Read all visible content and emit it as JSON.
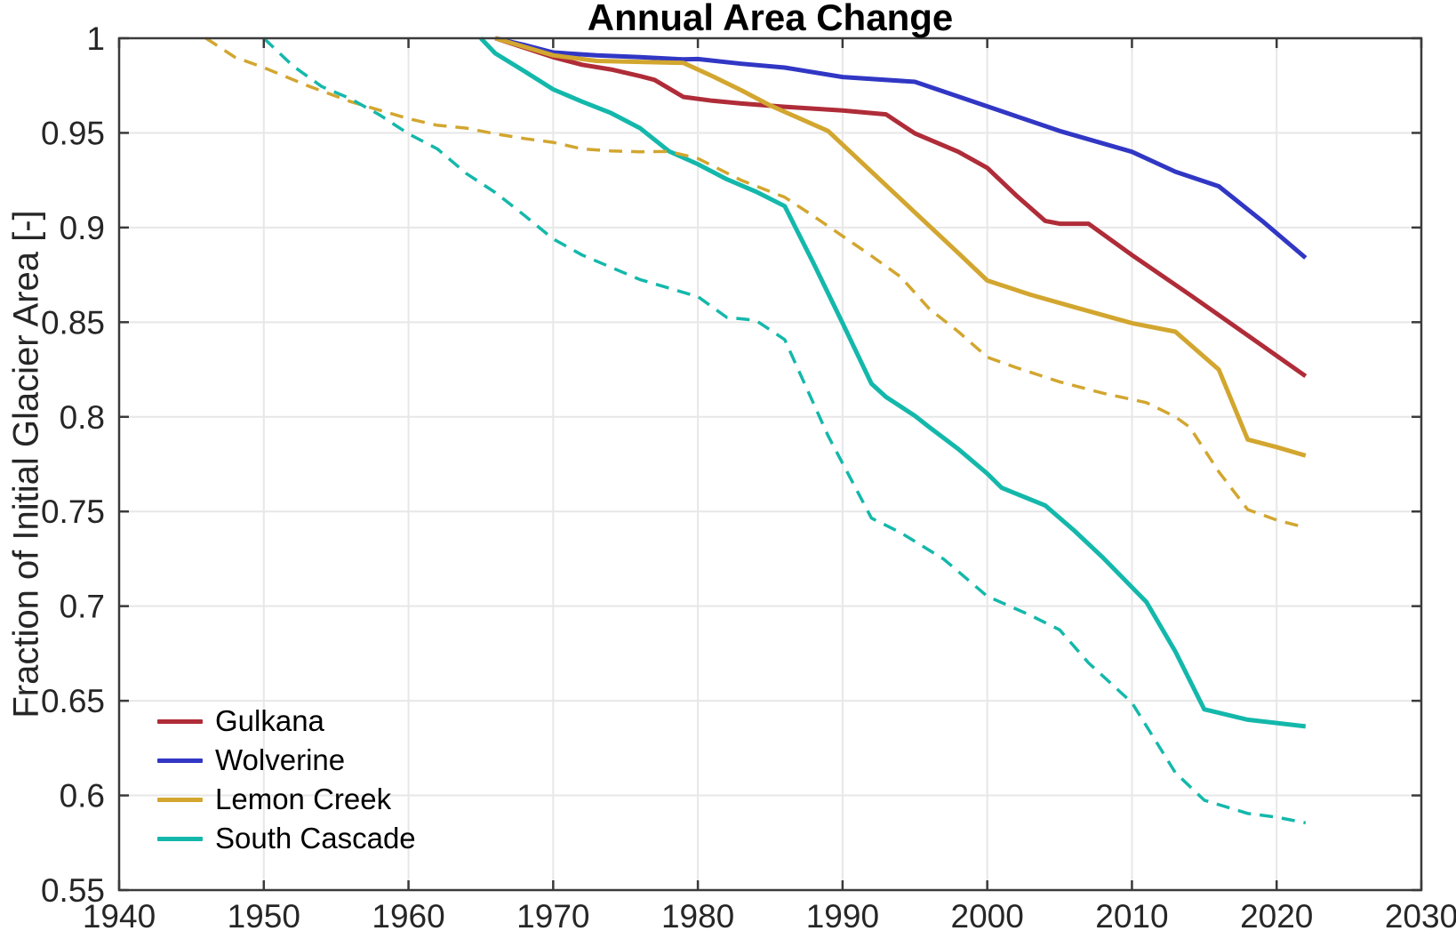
{
  "chart_data": {
    "type": "line",
    "title": "Annual Area Change",
    "xlabel": "",
    "ylabel": "Fraction of Initial Glacier Area [-]",
    "xlim": [
      1940,
      2030
    ],
    "ylim": [
      0.55,
      1.0
    ],
    "xticks": [
      1940,
      1950,
      1960,
      1970,
      1980,
      1990,
      2000,
      2010,
      2020,
      2030
    ],
    "yticks": [
      0.55,
      0.6,
      0.65,
      0.7,
      0.75,
      0.8,
      0.85,
      0.9,
      0.95,
      1
    ],
    "ytick_labels": [
      "0.55",
      "0.6",
      "0.65",
      "0.7",
      "0.75",
      "0.8",
      "0.85",
      "0.9",
      "0.95",
      "1"
    ],
    "grid": true,
    "grid_color": "#e7e7e7",
    "axis_color": "#3a3a3a",
    "tick_label_color": "#262626",
    "background": "#ffffff",
    "legend_position": "lower-left",
    "legend": [
      {
        "label": "Gulkana",
        "color": "#af2c38"
      },
      {
        "label": "Wolverine",
        "color": "#3137c4"
      },
      {
        "label": "Lemon Creek",
        "color": "#d2a62f"
      },
      {
        "label": "South Cascade",
        "color": "#14b8ab"
      }
    ],
    "series": [
      {
        "name": "gulkana-solid",
        "label": "Gulkana",
        "color": "#af2c38",
        "line_style": "solid",
        "line_width": 5,
        "in_legend": true,
        "points": [
          [
            1966,
            1.0
          ],
          [
            1968,
            0.995
          ],
          [
            1970,
            0.99
          ],
          [
            1972,
            0.986
          ],
          [
            1974,
            0.9835
          ],
          [
            1976,
            0.98
          ],
          [
            1977,
            0.978
          ],
          [
            1979,
            0.969
          ],
          [
            1981,
            0.967
          ],
          [
            1983,
            0.9655
          ],
          [
            1986,
            0.9638
          ],
          [
            1990,
            0.9618
          ],
          [
            1993,
            0.9598
          ],
          [
            1995,
            0.9497
          ],
          [
            1998,
            0.94
          ],
          [
            2000,
            0.9315
          ],
          [
            2002,
            0.917
          ],
          [
            2004,
            0.9035
          ],
          [
            2005,
            0.902
          ],
          [
            2007,
            0.902
          ],
          [
            2010,
            0.8855
          ],
          [
            2014,
            0.8645
          ],
          [
            2018,
            0.843
          ],
          [
            2022,
            0.8215
          ]
        ]
      },
      {
        "name": "wolverine-solid",
        "label": "Wolverine",
        "color": "#3137c4",
        "line_style": "solid",
        "line_width": 5,
        "in_legend": true,
        "points": [
          [
            1966,
            1.0
          ],
          [
            1968,
            0.9965
          ],
          [
            1970,
            0.9925
          ],
          [
            1973,
            0.991
          ],
          [
            1976,
            0.99
          ],
          [
            1979,
            0.9888
          ],
          [
            1980,
            0.989
          ],
          [
            1983,
            0.9865
          ],
          [
            1986,
            0.9845
          ],
          [
            1990,
            0.9795
          ],
          [
            1995,
            0.977
          ],
          [
            2000,
            0.964
          ],
          [
            2005,
            0.951
          ],
          [
            2010,
            0.94
          ],
          [
            2013,
            0.9295
          ],
          [
            2016,
            0.9218
          ],
          [
            2019,
            0.9035
          ],
          [
            2022,
            0.884
          ]
        ]
      },
      {
        "name": "lemon-creek-solid",
        "label": "Lemon Creek",
        "color": "#d2a62f",
        "line_style": "solid",
        "line_width": 5,
        "in_legend": true,
        "points": [
          [
            1966,
            1.0
          ],
          [
            1968,
            0.9955
          ],
          [
            1970,
            0.991
          ],
          [
            1973,
            0.988
          ],
          [
            1976,
            0.9875
          ],
          [
            1979,
            0.987
          ],
          [
            1981,
            0.98
          ],
          [
            1983,
            0.9725
          ],
          [
            1985,
            0.9645
          ],
          [
            1989,
            0.951
          ],
          [
            1992,
            0.9295
          ],
          [
            1995,
            0.908
          ],
          [
            1998,
            0.8865
          ],
          [
            2000,
            0.872
          ],
          [
            2003,
            0.8645
          ],
          [
            2006,
            0.858
          ],
          [
            2010,
            0.8495
          ],
          [
            2013,
            0.845
          ],
          [
            2016,
            0.825
          ],
          [
            2018,
            0.788
          ],
          [
            2020,
            0.784
          ],
          [
            2022,
            0.7795
          ]
        ]
      },
      {
        "name": "south-cascade-solid",
        "label": "South Cascade",
        "color": "#14b8ab",
        "line_style": "solid",
        "line_width": 5,
        "in_legend": true,
        "points": [
          [
            1965,
            1.0
          ],
          [
            1966,
            0.992
          ],
          [
            1968,
            0.9826
          ],
          [
            1970,
            0.973
          ],
          [
            1972,
            0.9665
          ],
          [
            1974,
            0.9605
          ],
          [
            1976,
            0.9525
          ],
          [
            1978,
            0.9403
          ],
          [
            1980,
            0.9335
          ],
          [
            1982,
            0.9255
          ],
          [
            1984,
            0.919
          ],
          [
            1986,
            0.9113
          ],
          [
            1988,
            0.881
          ],
          [
            1990,
            0.8495
          ],
          [
            1992,
            0.8175
          ],
          [
            1993,
            0.8105
          ],
          [
            1995,
            0.8005
          ],
          [
            1996,
            0.7945
          ],
          [
            1998,
            0.783
          ],
          [
            2000,
            0.77
          ],
          [
            2001,
            0.7625
          ],
          [
            2004,
            0.7532
          ],
          [
            2006,
            0.74
          ],
          [
            2008,
            0.7256
          ],
          [
            2011,
            0.7022
          ],
          [
            2013,
            0.676
          ],
          [
            2015,
            0.6455
          ],
          [
            2018,
            0.64
          ],
          [
            2022,
            0.6365
          ]
        ]
      },
      {
        "name": "lemon-creek-dashed",
        "label": "Lemon Creek (dashed)",
        "color": "#d2a62f",
        "line_style": "dashed",
        "line_width": 3.5,
        "in_legend": false,
        "points": [
          [
            1946,
            1.0
          ],
          [
            1948,
            0.99
          ],
          [
            1950,
            0.9845
          ],
          [
            1953,
            0.975
          ],
          [
            1956,
            0.9665
          ],
          [
            1958,
            0.962
          ],
          [
            1960,
            0.9575
          ],
          [
            1962,
            0.954
          ],
          [
            1964,
            0.9525
          ],
          [
            1966,
            0.9495
          ],
          [
            1968,
            0.947
          ],
          [
            1970,
            0.945
          ],
          [
            1972,
            0.9415
          ],
          [
            1974,
            0.9405
          ],
          [
            1976,
            0.94
          ],
          [
            1978,
            0.9402
          ],
          [
            1980,
            0.9365
          ],
          [
            1983,
            0.925
          ],
          [
            1986,
            0.916
          ],
          [
            1988,
            0.906
          ],
          [
            1990,
            0.8955
          ],
          [
            1992,
            0.885
          ],
          [
            1994,
            0.874
          ],
          [
            1996,
            0.857
          ],
          [
            1998,
            0.845
          ],
          [
            2000,
            0.8315
          ],
          [
            2002,
            0.826
          ],
          [
            2005,
            0.8185
          ],
          [
            2008,
            0.8125
          ],
          [
            2011,
            0.8075
          ],
          [
            2013,
            0.8
          ],
          [
            2014,
            0.7945
          ],
          [
            2016,
            0.771
          ],
          [
            2018,
            0.751
          ],
          [
            2020,
            0.7455
          ],
          [
            2022,
            0.7415
          ]
        ]
      },
      {
        "name": "south-cascade-dashed",
        "label": "South Cascade (dashed)",
        "color": "#14b8ab",
        "line_style": "dashed",
        "line_width": 3.5,
        "in_legend": false,
        "points": [
          [
            1950,
            1.0
          ],
          [
            1952,
            0.9855
          ],
          [
            1954,
            0.9745
          ],
          [
            1956,
            0.968
          ],
          [
            1958,
            0.9595
          ],
          [
            1960,
            0.9495
          ],
          [
            1962,
            0.9415
          ],
          [
            1964,
            0.9285
          ],
          [
            1966,
            0.9185
          ],
          [
            1968,
            0.9065
          ],
          [
            1970,
            0.894
          ],
          [
            1972,
            0.8855
          ],
          [
            1974,
            0.879
          ],
          [
            1976,
            0.8725
          ],
          [
            1978,
            0.868
          ],
          [
            1980,
            0.8635
          ],
          [
            1982,
            0.8525
          ],
          [
            1984,
            0.851
          ],
          [
            1986,
            0.8408
          ],
          [
            1989,
            0.79
          ],
          [
            1992,
            0.7465
          ],
          [
            1994,
            0.7389
          ],
          [
            1997,
            0.7248
          ],
          [
            2000,
            0.7052
          ],
          [
            2003,
            0.6951
          ],
          [
            2005,
            0.6875
          ],
          [
            2007,
            0.67
          ],
          [
            2010,
            0.649
          ],
          [
            2013,
            0.612
          ],
          [
            2015,
            0.5975
          ],
          [
            2018,
            0.5905
          ],
          [
            2020,
            0.5885
          ],
          [
            2022,
            0.5855
          ]
        ]
      }
    ]
  }
}
